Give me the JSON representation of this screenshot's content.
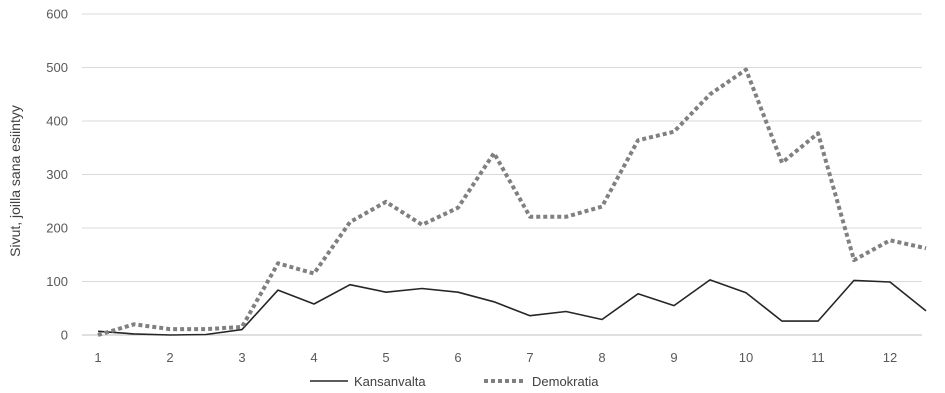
{
  "chart_data": {
    "type": "line",
    "title": "",
    "xlabel": "",
    "ylabel": "Sivut, joilla sana esiintyy",
    "ylim": [
      0,
      600
    ],
    "yticks": [
      0,
      100,
      200,
      300,
      400,
      500,
      600
    ],
    "xticks": [
      1,
      2,
      3,
      4,
      5,
      6,
      7,
      8,
      9,
      10,
      11,
      12
    ],
    "xlim": [
      1,
      12.5
    ],
    "grid": true,
    "legend_position": "bottom",
    "x": [
      1,
      1.5,
      2,
      2.5,
      3,
      3.5,
      4,
      4.5,
      5,
      5.5,
      6,
      6.5,
      7,
      7.5,
      8,
      8.5,
      9,
      9.5,
      10,
      10.5,
      11,
      11.5,
      12,
      12.5
    ],
    "series": [
      {
        "name": "Kansanvalta",
        "style": "solid",
        "color": "#262626",
        "values": [
          7,
          2,
          0,
          1,
          10,
          84,
          58,
          94,
          80,
          87,
          80,
          62,
          36,
          44,
          29,
          77,
          55,
          103,
          79,
          26,
          26,
          102,
          99,
          45
        ]
      },
      {
        "name": "Demokratia",
        "style": "dotted",
        "color": "#808080",
        "values": [
          0,
          20,
          11,
          11,
          15,
          134,
          115,
          211,
          249,
          206,
          238,
          340,
          221,
          221,
          240,
          364,
          380,
          450,
          496,
          322,
          377,
          140,
          177,
          162
        ]
      }
    ]
  }
}
